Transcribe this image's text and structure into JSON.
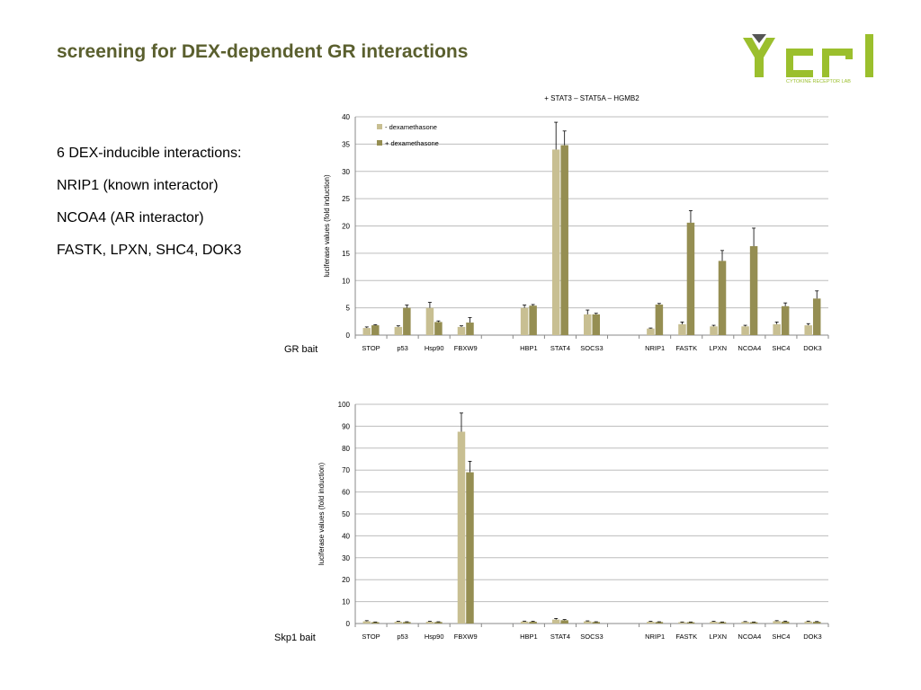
{
  "slide": {
    "title": "screening for DEX-dependent GR interactions",
    "bullets": [
      "6 DEX-inducible interactions:",
      "NRIP1 (known interactor)",
      "NCOA4 (AR interactor)",
      "FASTK, LPXN, SHC4, DOK3"
    ]
  },
  "logo": {
    "text": "CYTOKINE RECEPTOR LAB",
    "color": "#9bbf2d"
  },
  "colors": {
    "minus_dex": "#c8bf92",
    "plus_dex": "#958e52",
    "title": "#5a5f2e"
  },
  "chart_data": [
    {
      "type": "bar",
      "title": "+ STAT3 – STAT5A – HGMB2",
      "side_label": "GR bait",
      "ylabel": "luciferase values (fold induction)",
      "ylim": [
        0,
        40
      ],
      "yticks": [
        0,
        5,
        10,
        15,
        20,
        25,
        30,
        35,
        40
      ],
      "grid": true,
      "legend": "top-left",
      "categories": [
        "STOP",
        "p53",
        "Hsp90",
        "FBXW9",
        "",
        "HBP1",
        "STAT4",
        "SOCS3",
        "",
        "NRIP1",
        "FASTK",
        "LPXN",
        "NCOA4",
        "SHC4",
        "DOK3"
      ],
      "series": [
        {
          "name": "- dexamethasone",
          "values": [
            1.3,
            1.5,
            5.0,
            1.5,
            null,
            5.0,
            34.0,
            3.8,
            null,
            1.2,
            2.0,
            1.6,
            1.6,
            2.0,
            1.8
          ],
          "errors": [
            0.2,
            0.2,
            1.0,
            0.2,
            null,
            0.5,
            5.0,
            0.8,
            null,
            0.1,
            0.4,
            0.2,
            0.2,
            0.4,
            0.3
          ]
        },
        {
          "name": "+ dexamethasone",
          "values": [
            1.8,
            5.0,
            2.4,
            2.3,
            null,
            5.4,
            34.8,
            3.8,
            null,
            5.6,
            20.6,
            13.6,
            16.3,
            5.3,
            6.7
          ],
          "errors": [
            0.1,
            0.5,
            0.2,
            0.9,
            null,
            0.2,
            2.6,
            0.2,
            null,
            0.2,
            2.2,
            1.9,
            3.3,
            0.6,
            1.4
          ]
        }
      ]
    },
    {
      "type": "bar",
      "title": "",
      "side_label": "Skp1 bait",
      "ylabel": "luciferase values (fold induction)",
      "ylim": [
        0,
        100
      ],
      "yticks": [
        0,
        10,
        20,
        30,
        40,
        50,
        60,
        70,
        80,
        90,
        100
      ],
      "grid": true,
      "categories": [
        "STOP",
        "p53",
        "Hsp90",
        "FBXW9",
        "",
        "HBP1",
        "STAT4",
        "SOCS3",
        "",
        "NRIP1",
        "FASTK",
        "LPXN",
        "NCOA4",
        "SHC4",
        "DOK3"
      ],
      "series": [
        {
          "values": [
            1.0,
            0.8,
            0.8,
            87.5,
            null,
            0.9,
            1.8,
            1.0,
            null,
            0.8,
            0.6,
            0.8,
            0.8,
            1.1,
            0.9
          ],
          "errors": [
            0.3,
            0.2,
            0.2,
            8.5,
            null,
            0.2,
            0.5,
            0.2,
            null,
            0.2,
            0.1,
            0.2,
            0.1,
            0.2,
            0.2
          ]
        },
        {
          "values": [
            0.6,
            0.7,
            0.7,
            69.0,
            null,
            0.8,
            1.5,
            0.7,
            null,
            0.7,
            0.6,
            0.6,
            0.6,
            0.9,
            0.8
          ],
          "errors": [
            0.1,
            0.1,
            0.1,
            5.0,
            null,
            0.2,
            0.3,
            0.1,
            null,
            0.1,
            0.1,
            0.1,
            0.1,
            0.2,
            0.1
          ]
        }
      ]
    }
  ]
}
